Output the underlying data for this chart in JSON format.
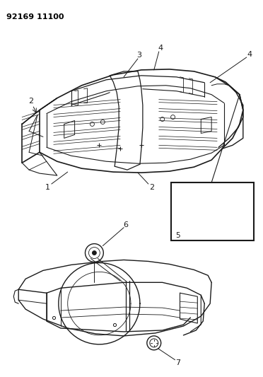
{
  "title_text": "92169 11100",
  "background_color": "#ffffff",
  "line_color": "#1a1a1a",
  "fig_width": 3.72,
  "fig_height": 5.33,
  "dpi": 100
}
